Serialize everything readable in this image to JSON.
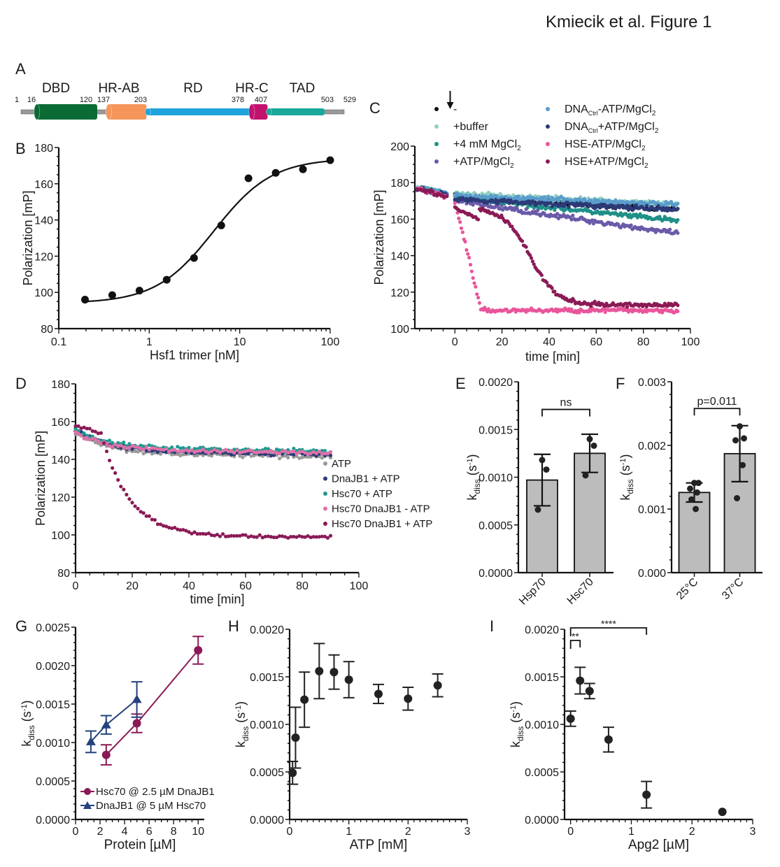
{
  "figure_title": "Kmiecik et al. Figure 1",
  "panel_a": {
    "label": "A",
    "domains": [
      {
        "name": "DBD",
        "start": 16,
        "end": 120,
        "color": "#0b6b35"
      },
      {
        "name": "HR-AB",
        "start": 137,
        "end": 203,
        "color": "#f5955a"
      },
      {
        "name": "RD",
        "start": 203,
        "end": 378,
        "color": "#1ea3dc"
      },
      {
        "name": "HR-C",
        "start": 378,
        "end": 407,
        "color": "#c2126e"
      },
      {
        "name": "TAD",
        "start": 407,
        "end": 503,
        "color": "#19a89a"
      }
    ],
    "positions": [
      "1",
      "16",
      "120",
      "137",
      "203",
      "378",
      "407",
      "503",
      "529"
    ],
    "length": 529,
    "linker_color": "#999999"
  },
  "chart_data": [
    {
      "panel": "B",
      "type": "scatter",
      "title": "",
      "xlabel": "Hsf1 trimer [nM]",
      "ylabel": "Polarization [mP]",
      "xscale": "log",
      "xlim": [
        0.1,
        100
      ],
      "ylim": [
        80,
        180
      ],
      "xticks": [
        "0.1",
        "1",
        "10",
        "100"
      ],
      "yticks": [
        "80",
        "100",
        "120",
        "140",
        "160",
        "180"
      ],
      "series": [
        {
          "name": "data",
          "color": "#111111",
          "x": [
            0.195,
            0.39,
            0.78,
            1.56,
            3.125,
            6.25,
            12.5,
            25,
            50,
            100
          ],
          "y": [
            96,
            98.5,
            101,
            107,
            119,
            137,
            163,
            166,
            168,
            173
          ]
        },
        {
          "name": "fit",
          "type": "line",
          "color": "#111111",
          "bottom": 94,
          "top": 174,
          "ec50": 5.2,
          "hill": 1.35
        }
      ],
      "grid": false
    },
    {
      "panel": "C",
      "type": "scatter",
      "xlabel": "time [min]",
      "ylabel": "Polarization [mP]",
      "xlim": [
        -17,
        100
      ],
      "ylim": [
        100,
        200
      ],
      "xticks": [
        "0",
        "20",
        "40",
        "60",
        "80",
        "100"
      ],
      "yticks": [
        "100",
        "120",
        "140",
        "160",
        "180",
        "200"
      ],
      "annotation": "arrow at t = -2 min (addition)",
      "legend": [
        {
          "label": "-",
          "color": "#111111"
        },
        {
          "label": "+buffer",
          "color": "#8fd0c0"
        },
        {
          "label": "+4 mM MgCl2",
          "color": "#1f9088"
        },
        {
          "label": "+ATP/MgCl2",
          "color": "#6a5aa8"
        },
        {
          "label": "DNACtrl-ATP/MgCl2",
          "color": "#5a9ccc"
        },
        {
          "label": "DNACtrl+ATP/MgCl2",
          "color": "#2c3a78"
        },
        {
          "label": "HSE-ATP/MgCl2",
          "color": "#e9559b"
        },
        {
          "label": "HSE+ATP/MgCl2",
          "color": "#8a1a55"
        }
      ],
      "series": [
        {
          "name": "-",
          "color": "#111111",
          "pre": 173,
          "start": 173,
          "end": 165,
          "shape": "linear"
        },
        {
          "name": "+buffer",
          "color": "#8fd0c0",
          "pre": 174,
          "start": 174,
          "end": 168,
          "shape": "linear"
        },
        {
          "name": "+4 mM MgCl2",
          "color": "#1f9088",
          "pre": 174,
          "start": 172,
          "end": 159,
          "shape": "linear"
        },
        {
          "name": "+ATP/MgCl2",
          "color": "#6a5aa8",
          "pre": 173,
          "start": 170,
          "end": 152,
          "shape": "linear"
        },
        {
          "name": "DNACtrl-ATP/MgCl2",
          "color": "#5a9ccc",
          "pre": 174,
          "start": 173,
          "end": 168,
          "shape": "linear"
        },
        {
          "name": "DNACtrl+ATP/MgCl2",
          "color": "#2c3a78",
          "pre": 173,
          "start": 171,
          "end": 165,
          "shape": "linear"
        },
        {
          "name": "HSE-ATP/MgCl2",
          "color": "#e9559b",
          "pre": 172,
          "start": 168,
          "end": 110,
          "shape": "fast",
          "t_half": 5
        },
        {
          "name": "HSE+ATP/MgCl2",
          "color": "#8a1a55",
          "pre": 172,
          "start": 166,
          "end": 113,
          "shape": "sigmoid",
          "t_half": 32
        }
      ]
    },
    {
      "panel": "D",
      "type": "scatter",
      "xlabel": "time [min]",
      "ylabel": "Polarization [mP]",
      "xlim": [
        0,
        100
      ],
      "ylim": [
        80,
        180
      ],
      "xticks": [
        "0",
        "20",
        "40",
        "60",
        "80",
        "100"
      ],
      "yticks": [
        "80",
        "100",
        "120",
        "140",
        "160",
        "180"
      ],
      "legend_position": "right",
      "legend": [
        {
          "label": "ATP",
          "color": "#999999"
        },
        {
          "label": "DnaJB1 + ATP",
          "color": "#2c3a78"
        },
        {
          "label": "Hsc70 + ATP",
          "color": "#1f9a90"
        },
        {
          "label": "Hsc70 DnaJB1 - ATP",
          "color": "#e070a8"
        },
        {
          "label": "Hsc70 DnaJB1 + ATP",
          "color": "#8a1a55"
        }
      ],
      "series": [
        {
          "name": "ATP",
          "color": "#999999",
          "start": 154,
          "end": 143,
          "shape": "decay"
        },
        {
          "name": "DnaJB1 + ATP",
          "color": "#2c3a78",
          "start": 156,
          "end": 144,
          "shape": "decay"
        },
        {
          "name": "Hsc70 + ATP",
          "color": "#1f9a90",
          "start": 155,
          "end": 146,
          "shape": "decay"
        },
        {
          "name": "Hsc70 DnaJB1 - ATP",
          "color": "#e070a8",
          "start": 154,
          "end": 145,
          "shape": "decay"
        },
        {
          "name": "Hsc70 DnaJB1 + ATP",
          "color": "#8a1a55",
          "start": 158,
          "end": 99,
          "shape": "lagdecay",
          "lag": 9
        }
      ]
    },
    {
      "panel": "E",
      "type": "bar",
      "ylabel": "kdiss (s-1)",
      "ylim": [
        0,
        0.002
      ],
      "yticks": [
        "0.0000",
        "0.0005",
        "0.0010",
        "0.0015",
        "0.0020"
      ],
      "categories": [
        "Hsp70",
        "Hsc70"
      ],
      "values": [
        0.00097,
        0.00125
      ],
      "errors": [
        0.00027,
        0.0002
      ],
      "points": [
        [
          0.00118,
          0.00108,
          0.00066
        ],
        [
          0.0014,
          0.00133,
          0.00102
        ]
      ],
      "bar_color": "#bcbcbc",
      "significance": [
        {
          "from": 0,
          "to": 1,
          "label": "ns"
        }
      ]
    },
    {
      "panel": "F",
      "type": "bar",
      "ylabel": "kdiss (s-1)",
      "ylim": [
        0,
        0.003
      ],
      "yticks": [
        "0.000",
        "0.001",
        "0.002",
        "0.003"
      ],
      "categories": [
        "25°C",
        "37°C"
      ],
      "values": [
        0.00126,
        0.00187
      ],
      "errors": [
        0.00015,
        0.00044
      ],
      "points": [
        [
          0.00141,
          0.00141,
          0.00132,
          0.00126,
          0.00115,
          0.001
        ],
        [
          0.0023,
          0.00211,
          0.00208,
          0.00169,
          0.00117
        ]
      ],
      "bar_color": "#bcbcbc",
      "significance": [
        {
          "from": 0,
          "to": 1,
          "label": "p=0.011"
        }
      ]
    },
    {
      "panel": "G",
      "type": "line",
      "xlabel": "Protein [µM]",
      "ylabel": "kdiss (s-1)",
      "xlim": [
        0,
        10.5
      ],
      "ylim": [
        0,
        0.0025
      ],
      "xticks": [
        "0",
        "2",
        "4",
        "6",
        "8",
        "10"
      ],
      "yticks": [
        "0.0000",
        "0.0005",
        "0.0010",
        "0.0015",
        "0.0020",
        "0.0025"
      ],
      "legend_position": "bottom-left",
      "series": [
        {
          "name": "Hsc70 @ 2.5 µM DnaJB1",
          "color": "#8a1a55",
          "marker": "circle",
          "x": [
            2.5,
            5,
            10
          ],
          "y": [
            0.00084,
            0.00125,
            0.0022
          ],
          "err": [
            0.00013,
            0.00012,
            0.00018
          ]
        },
        {
          "name": "DnaJB1 @ 5 µM Hsc70",
          "color": "#24427e",
          "marker": "triangle",
          "x": [
            1.25,
            2.5,
            5
          ],
          "y": [
            0.00101,
            0.00123,
            0.00156
          ],
          "err": [
            0.00014,
            0.00012,
            0.00023
          ]
        }
      ]
    },
    {
      "panel": "H",
      "type": "scatter",
      "xlabel": "ATP [mM]",
      "ylabel": "kdiss (s-1)",
      "xlim": [
        0,
        3
      ],
      "ylim": [
        0,
        0.002
      ],
      "xticks": [
        "0",
        "1",
        "2",
        "3"
      ],
      "yticks": [
        "0.0000",
        "0.0005",
        "0.0010",
        "0.0015",
        "0.0020"
      ],
      "series": [
        {
          "name": "data",
          "color": "#222222",
          "x": [
            0.05,
            0.1,
            0.25,
            0.5,
            0.75,
            1.0,
            1.5,
            2.0,
            2.5
          ],
          "y": [
            0.00049,
            0.00086,
            0.00126,
            0.00156,
            0.00155,
            0.00147,
            0.00132,
            0.00127,
            0.00141
          ],
          "err": [
            0.00012,
            0.00032,
            0.00029,
            0.00029,
            0.00018,
            0.00019,
            0.0001,
            0.00012,
            0.00012
          ]
        }
      ]
    },
    {
      "panel": "I",
      "type": "scatter",
      "xlabel": "Apg2 [µM]",
      "ylabel": "kdiss (s-1)",
      "xlim": [
        -0.1,
        3
      ],
      "ylim": [
        0,
        0.002
      ],
      "xticks": [
        "0",
        "1",
        "2",
        "3"
      ],
      "yticks": [
        "0.0000",
        "0.0005",
        "0.0010",
        "0.0015",
        "0.0020"
      ],
      "series": [
        {
          "name": "data",
          "color": "#222222",
          "x": [
            0,
            0.156,
            0.3125,
            0.625,
            1.25,
            2.5
          ],
          "y": [
            0.00106,
            0.00146,
            0.00135,
            0.00084,
            0.00026,
            8e-05
          ],
          "err": [
            8e-05,
            0.00014,
            8e-05,
            0.00013,
            0.00014,
            0
          ]
        }
      ],
      "significance": [
        {
          "from": 0,
          "to": 0.156,
          "label": "**"
        },
        {
          "from": 0,
          "to": 1.25,
          "label": "****"
        }
      ]
    }
  ]
}
